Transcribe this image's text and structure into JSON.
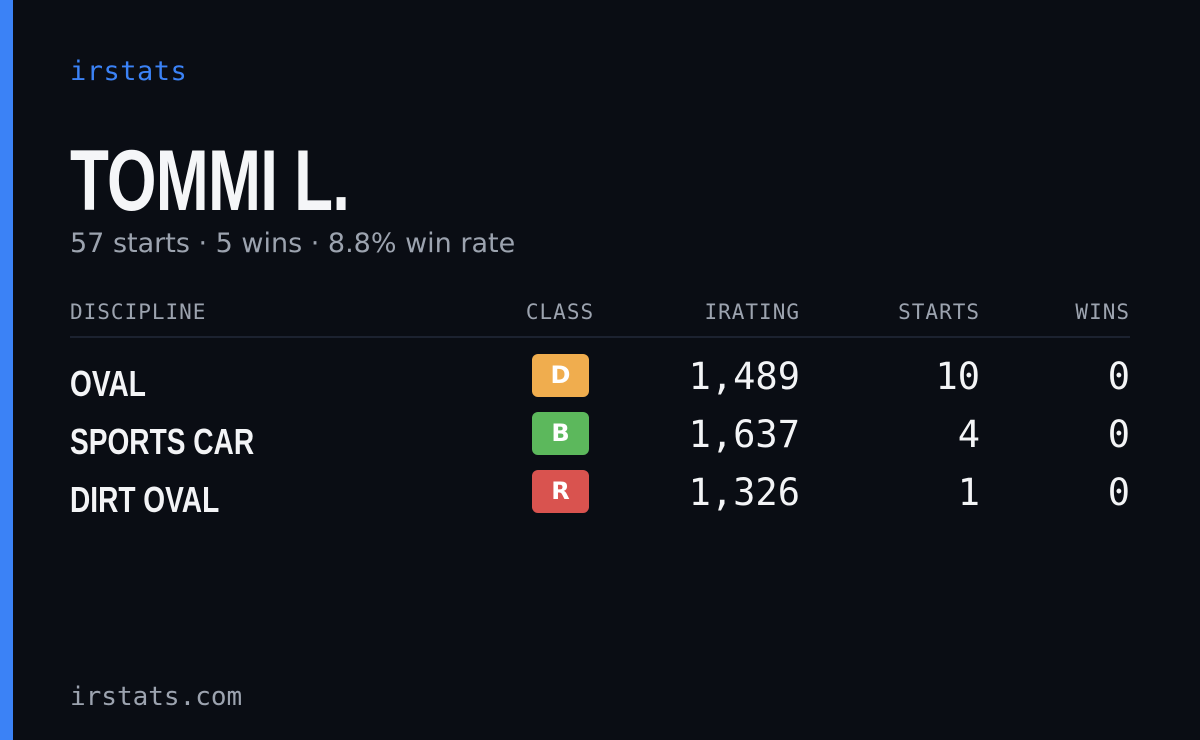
{
  "brand": "irstats",
  "driver": {
    "name": "TOMMI L.",
    "summary": "57 starts · 5 wins · 8.8% win rate"
  },
  "table": {
    "headers": {
      "discipline": "DISCIPLINE",
      "class": "CLASS",
      "irating": "IRATING",
      "starts": "STARTS",
      "wins": "WINS"
    },
    "rows": [
      {
        "discipline": "OVAL",
        "class": "D",
        "class_color": "#f0ad4e",
        "irating": "1,489",
        "starts": "10",
        "wins": "0"
      },
      {
        "discipline": "SPORTS CAR",
        "class": "B",
        "class_color": "#5cb85c",
        "irating": "1,637",
        "starts": "4",
        "wins": "0"
      },
      {
        "discipline": "DIRT OVAL",
        "class": "R",
        "class_color": "#d9534f",
        "irating": "1,326",
        "starts": "1",
        "wins": "0"
      }
    ]
  },
  "footer": "irstats.com",
  "colors": {
    "accent": "#3b82f6",
    "background": "#0a0d14",
    "muted": "#9ca3af"
  }
}
